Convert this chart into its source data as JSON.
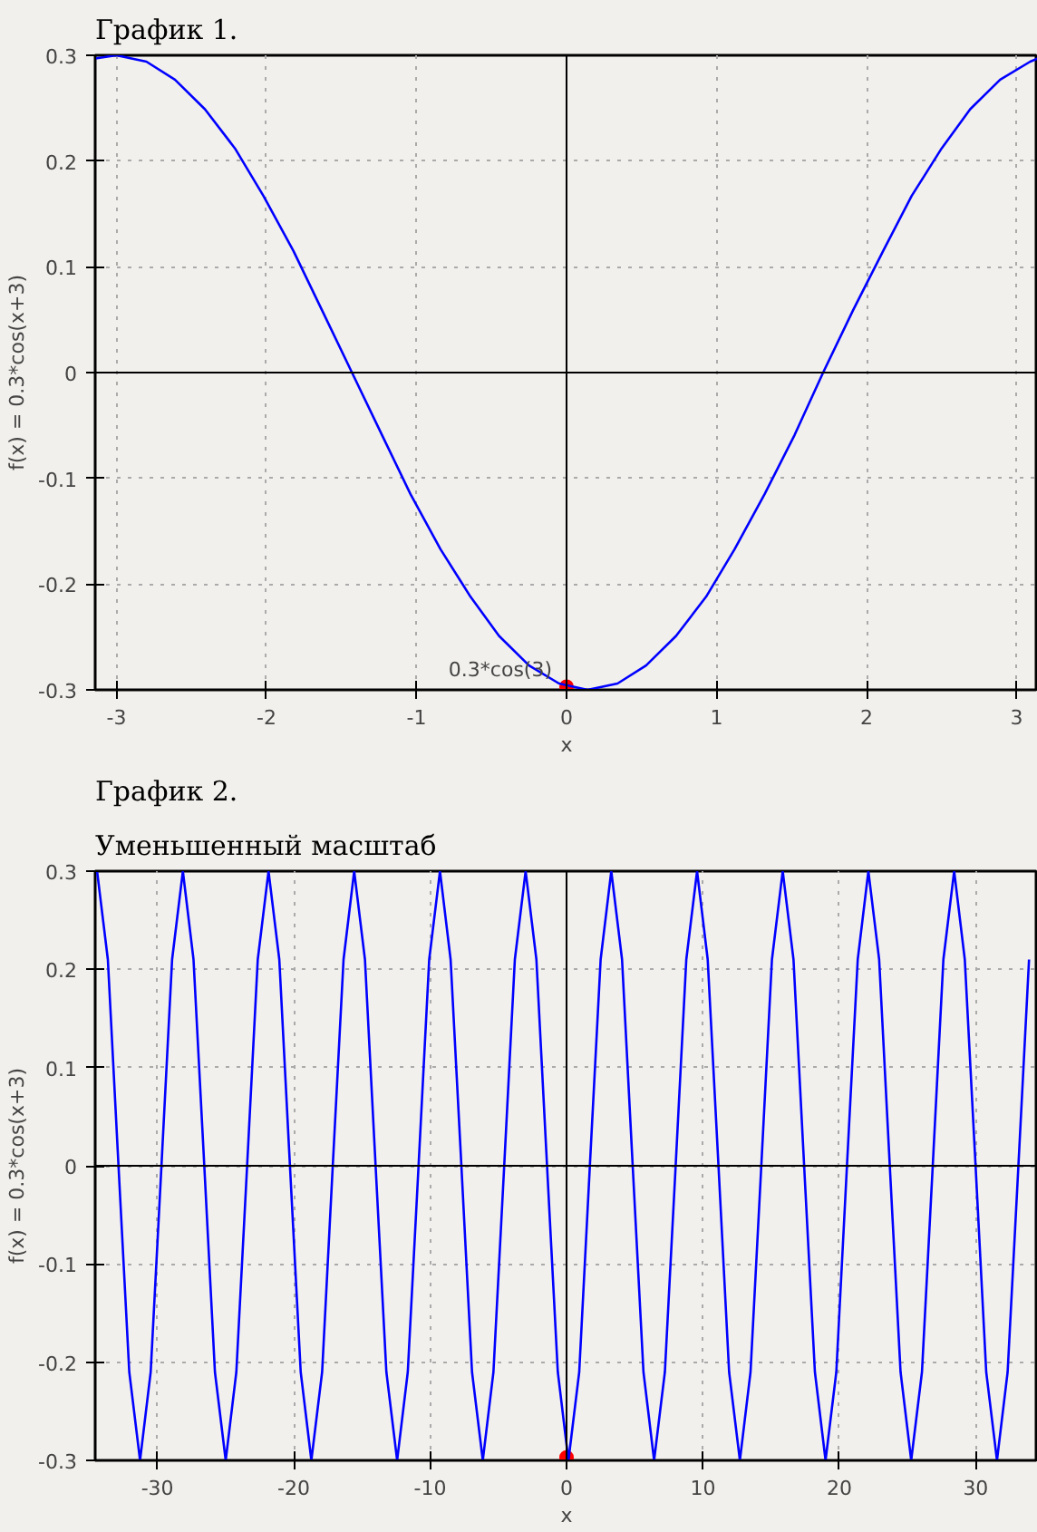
{
  "chart_data": [
    {
      "type": "line",
      "title": "График 1.",
      "xlabel": "x",
      "ylabel": "f(x) = 0.3*cos(x+3)",
      "xlim": [
        -3.1416,
        3.1416
      ],
      "ylim": [
        -0.3,
        0.3
      ],
      "xticks": [
        -3,
        -2,
        -1,
        0,
        1,
        2,
        3
      ],
      "yticks": [
        -0.3,
        -0.2,
        -0.1,
        0,
        0.1,
        0.2,
        0.3
      ],
      "grid": true,
      "series": [
        {
          "color": "#0000ff",
          "x": [
            -3.14,
            -3.0,
            -2.8,
            -2.61,
            -2.41,
            -2.21,
            -2.02,
            -1.82,
            -1.63,
            -1.43,
            -1.23,
            -1.04,
            -0.84,
            -0.64,
            -0.45,
            -0.25,
            -0.05,
            0.14,
            0.34,
            0.53,
            0.73,
            0.93,
            1.12,
            1.32,
            1.52,
            1.71,
            1.91,
            2.11,
            2.3,
            2.5,
            2.69,
            2.89,
            3.09,
            3.14
          ],
          "values": [
            0.297,
            0.3,
            0.294,
            0.277,
            0.249,
            0.212,
            0.167,
            0.115,
            0.059,
            0,
            -0.059,
            -0.115,
            -0.167,
            -0.212,
            -0.249,
            -0.277,
            -0.294,
            -0.3,
            -0.294,
            -0.277,
            -0.249,
            -0.212,
            -0.167,
            -0.115,
            -0.059,
            0,
            0.059,
            0.115,
            0.167,
            0.212,
            0.249,
            0.277,
            0.294,
            0.297
          ]
        },
        {
          "type": "scatter",
          "color": "#ff0000",
          "x": [
            0
          ],
          "values": [
            -0.297
          ]
        }
      ],
      "annotations": [
        {
          "text": "0.3*cos(3)",
          "x": 0,
          "y": -0.297
        }
      ]
    },
    {
      "type": "line",
      "title": "График 2.",
      "subtitle": "Уменьшенный масштаб",
      "xlabel": "x",
      "ylabel": "f(x) = 0.3*cos(x+3)",
      "xlim": [
        -34.56,
        34.56
      ],
      "ylim": [
        -0.3,
        0.3
      ],
      "xticks": [
        -30,
        -20,
        -10,
        0,
        10,
        20,
        30
      ],
      "yticks": [
        -0.3,
        -0.2,
        -0.1,
        0,
        0.1,
        0.2,
        0.3
      ],
      "grid": true,
      "series": [
        {
          "color": "#0000ff",
          "x": [
            -34.42,
            -33.63,
            -32.85,
            -32.06,
            -31.27,
            -30.49,
            -29.7,
            -28.92,
            -28.13,
            -27.35,
            -26.56,
            -25.78,
            -24.99,
            -24.21,
            -23.42,
            -22.64,
            -21.85,
            -21.06,
            -20.28,
            -19.49,
            -18.71,
            -17.92,
            -17.14,
            -16.35,
            -15.57,
            -14.78,
            -14.0,
            -13.21,
            -12.42,
            -11.64,
            -10.85,
            -10.07,
            -9.28,
            -8.5,
            -7.71,
            -6.93,
            -6.14,
            -5.36,
            -4.57,
            -3.79,
            -3.0,
            -2.21,
            -1.43,
            -0.64,
            0.14,
            0.93,
            1.71,
            2.5,
            3.28,
            4.07,
            4.85,
            5.64,
            6.42,
            7.21,
            8.0,
            8.78,
            9.57,
            10.35,
            11.14,
            11.92,
            12.71,
            13.49,
            14.28,
            15.06,
            15.85,
            16.64,
            17.42,
            18.21,
            18.99,
            19.78,
            20.56,
            21.35,
            22.13,
            22.92,
            23.7,
            24.49,
            25.27,
            26.06,
            26.85,
            27.63,
            28.42,
            29.2,
            29.99,
            30.77,
            31.56,
            32.34,
            33.13,
            33.91
          ],
          "values": [
            0.3,
            0.21,
            0,
            -0.21,
            -0.3,
            -0.21,
            0,
            0.21,
            0.3,
            0.21,
            0,
            -0.21,
            -0.3,
            -0.21,
            0,
            0.21,
            0.3,
            0.21,
            0,
            -0.21,
            -0.3,
            -0.21,
            0,
            0.21,
            0.3,
            0.21,
            0,
            -0.21,
            -0.3,
            -0.21,
            0,
            0.21,
            0.3,
            0.21,
            0,
            -0.21,
            -0.3,
            -0.21,
            0,
            0.21,
            0.3,
            0.21,
            0,
            -0.21,
            -0.3,
            -0.21,
            0,
            0.21,
            0.3,
            0.21,
            0,
            -0.21,
            -0.3,
            -0.21,
            0,
            0.21,
            0.3,
            0.21,
            0,
            -0.21,
            -0.3,
            -0.21,
            0,
            0.21,
            0.3,
            0.21,
            0,
            -0.21,
            -0.3,
            -0.21,
            0,
            0.21,
            0.3,
            0.21,
            0,
            -0.21,
            -0.3,
            -0.21,
            0,
            0.21,
            0.3,
            0.21,
            0,
            -0.21,
            -0.3,
            -0.21,
            0,
            0.21
          ]
        },
        {
          "type": "scatter",
          "color": "#ff0000",
          "x": [
            0
          ],
          "values": [
            -0.297
          ]
        }
      ]
    }
  ]
}
